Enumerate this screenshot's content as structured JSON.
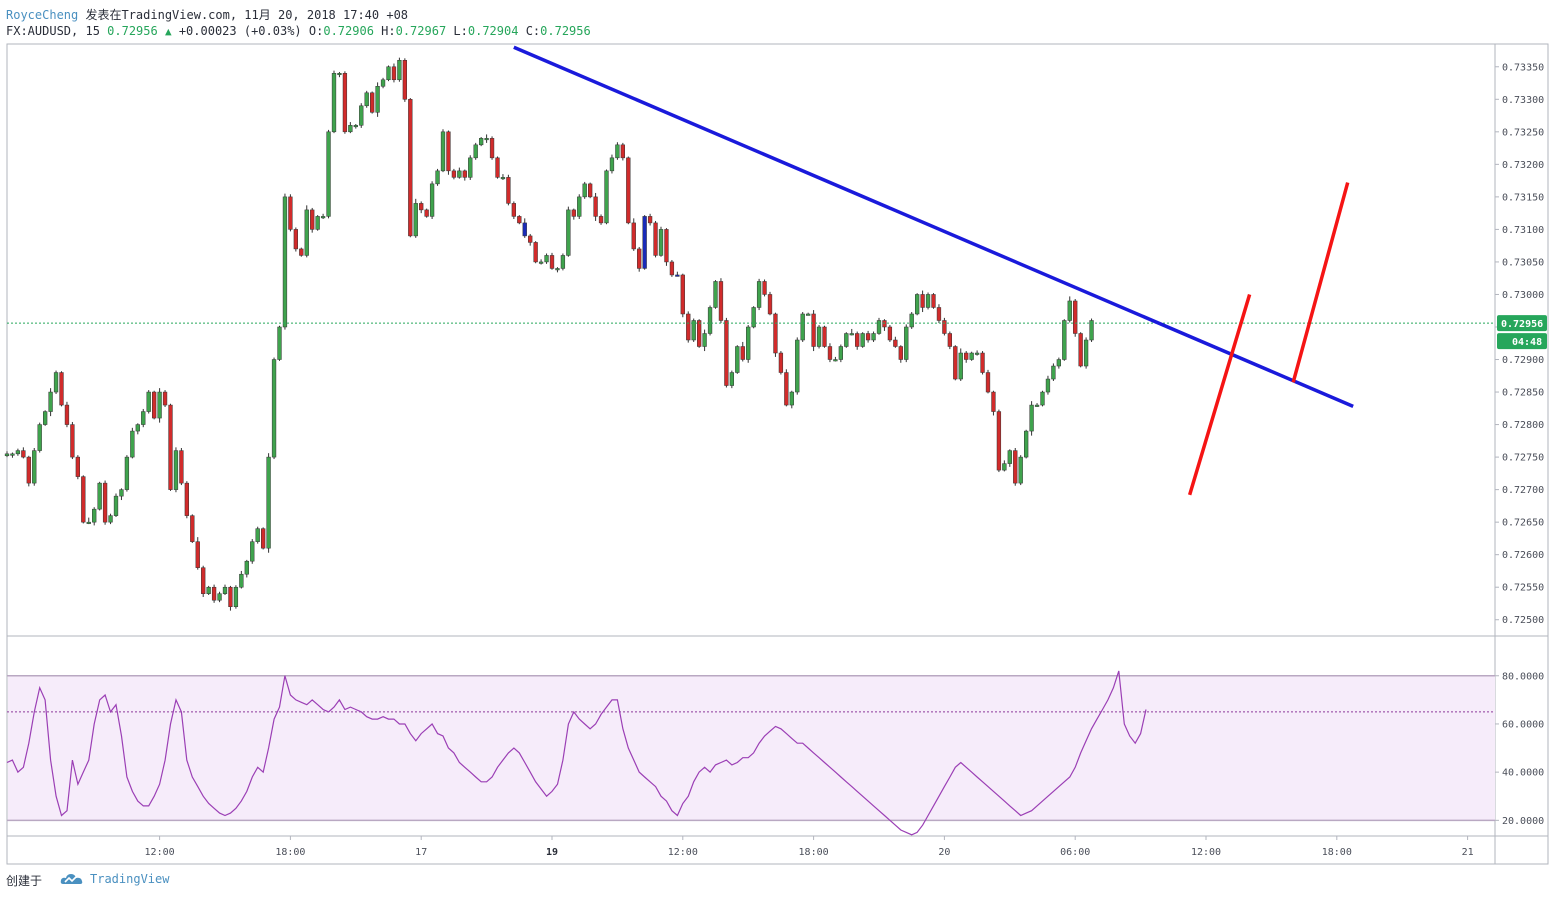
{
  "header": {
    "user": "RoyceCheng",
    "published": "发表在TradingView.com, 11月 20, 2018 17:40 +08",
    "symbol": "FX:AUDUSD, 15",
    "last": "0.72956",
    "change": "+0.00023 (+0.03%)",
    "o_label": "O:",
    "o": "0.72906",
    "h_label": "H:",
    "h": "0.72967",
    "l_label": "L:",
    "l": "0.72904",
    "c_label": "C:",
    "c": "0.72956"
  },
  "footer": {
    "created": "创建于",
    "brand": "TradingView"
  },
  "colors": {
    "up": "#3fa34d",
    "down": "#d12b2b",
    "highlight": "#1a2bb8",
    "trendline": "#1a1adb",
    "channel": "#f51414",
    "rsi": "#9b3fb5",
    "rsi_band": "#f6ecfa",
    "price_line": "#26a65b"
  },
  "chart_data": [
    {
      "type": "candlestick",
      "title": "FX:AUDUSD, 15",
      "ylim": [
        0.72475,
        0.73385
      ],
      "y_ticks": [
        "0.73350",
        "0.73300",
        "0.73250",
        "0.73200",
        "0.73150",
        "0.73100",
        "0.73050",
        "0.73000",
        "0.72950",
        "0.72900",
        "0.72850",
        "0.72800",
        "0.72750",
        "0.72700",
        "0.72650",
        "0.72600",
        "0.72550",
        "0.72500"
      ],
      "x_ticks": [
        {
          "label": "12:00",
          "bar": 28,
          "bold": false
        },
        {
          "label": "18:00",
          "bar": 52,
          "bold": false
        },
        {
          "label": "17",
          "bar": 76,
          "bold": false
        },
        {
          "label": "19",
          "bar": 100,
          "bold": true
        },
        {
          "label": "12:00",
          "bar": 124,
          "bold": false
        },
        {
          "label": "18:00",
          "bar": 148,
          "bold": false
        },
        {
          "label": "20",
          "bar": 172,
          "bold": false
        },
        {
          "label": "06:00",
          "bar": 196,
          "bold": false
        },
        {
          "label": "12:00",
          "bar": 220,
          "bold": false
        },
        {
          "label": "18:00",
          "bar": 244,
          "bold": false
        },
        {
          "label": "21",
          "bar": 268,
          "bold": false
        }
      ],
      "closes": [
        0.72755,
        0.72755,
        0.7276,
        0.7275,
        0.7271,
        0.7276,
        0.728,
        0.7282,
        0.7285,
        0.7288,
        0.7283,
        0.728,
        0.7275,
        0.7272,
        0.7265,
        0.7265,
        0.7267,
        0.7271,
        0.7265,
        0.7266,
        0.7269,
        0.727,
        0.7275,
        0.7279,
        0.728,
        0.7282,
        0.7285,
        0.7281,
        0.7285,
        0.7283,
        0.727,
        0.7276,
        0.7271,
        0.7266,
        0.7262,
        0.7258,
        0.7254,
        0.7255,
        0.7253,
        0.7254,
        0.7255,
        0.7252,
        0.7255,
        0.7257,
        0.7259,
        0.7262,
        0.7264,
        0.7261,
        0.7275,
        0.729,
        0.7295,
        0.7315,
        0.731,
        0.7307,
        0.7306,
        0.7313,
        0.731,
        0.7312,
        0.7312,
        0.7325,
        0.7334,
        0.7334,
        0.7325,
        0.7326,
        0.7326,
        0.7329,
        0.7331,
        0.7328,
        0.7332,
        0.7333,
        0.7335,
        0.7333,
        0.7336,
        0.733,
        0.7309,
        0.7314,
        0.7313,
        0.7312,
        0.7317,
        0.7319,
        0.7325,
        0.7319,
        0.7318,
        0.7319,
        0.7318,
        0.7321,
        0.7323,
        0.7324,
        0.7324,
        0.7321,
        0.7318,
        0.7318,
        0.7314,
        0.7312,
        0.7311,
        0.7309,
        0.7308,
        0.7305,
        0.7305,
        0.7306,
        0.7304,
        0.7304,
        0.7306,
        0.7313,
        0.7312,
        0.7315,
        0.7317,
        0.7315,
        0.7312,
        0.7311,
        0.7319,
        0.7321,
        0.7323,
        0.7321,
        0.7311,
        0.7307,
        0.7304,
        0.7312,
        0.7311,
        0.7306,
        0.731,
        0.7305,
        0.7303,
        0.7303,
        0.7297,
        0.7293,
        0.7296,
        0.7292,
        0.7294,
        0.7298,
        0.7302,
        0.7296,
        0.7286,
        0.7288,
        0.7292,
        0.729,
        0.7295,
        0.7298,
        0.7302,
        0.73,
        0.7297,
        0.7291,
        0.7288,
        0.7283,
        0.7285,
        0.7293,
        0.7297,
        0.7297,
        0.7292,
        0.7295,
        0.7292,
        0.729,
        0.729,
        0.7292,
        0.7294,
        0.7294,
        0.7292,
        0.7294,
        0.7293,
        0.7294,
        0.7296,
        0.7295,
        0.7293,
        0.7292,
        0.729,
        0.7295,
        0.7297,
        0.73,
        0.7298,
        0.73,
        0.7298,
        0.7296,
        0.7294,
        0.7292,
        0.7287,
        0.7291,
        0.729,
        0.7291,
        0.7291,
        0.7288,
        0.7285,
        0.7282,
        0.7273,
        0.7274,
        0.7276,
        0.7271,
        0.7275,
        0.7279,
        0.7283,
        0.7283,
        0.7285,
        0.7287,
        0.7289,
        0.729,
        0.7296,
        0.7299,
        0.7294,
        0.7289,
        0.7293,
        0.7296
      ]
    },
    {
      "type": "line",
      "title": "RSI",
      "ylim": [
        13.5,
        96.5
      ],
      "y_ticks": [
        "80.0000",
        "60.0000",
        "40.0000",
        "20.0000"
      ],
      "bands": [
        20,
        80
      ],
      "midline": 65,
      "values": [
        44,
        45,
        40,
        42,
        52,
        65,
        75,
        70,
        45,
        30,
        22,
        24,
        45,
        35,
        40,
        45,
        60,
        70,
        72,
        65,
        68,
        55,
        38,
        32,
        28,
        26,
        26,
        30,
        35,
        45,
        60,
        70,
        65,
        45,
        38,
        34,
        30,
        27,
        25,
        23,
        22,
        23,
        25,
        28,
        32,
        38,
        42,
        40,
        50,
        62,
        67,
        80,
        72,
        70,
        69,
        68,
        70,
        68,
        66,
        65,
        67,
        70,
        66,
        67,
        66,
        65,
        63,
        62,
        62,
        63,
        62,
        62,
        60,
        60,
        56,
        53,
        56,
        58,
        60,
        56,
        55,
        50,
        48,
        44,
        42,
        40,
        38,
        36,
        36,
        38,
        42,
        45,
        48,
        50,
        48,
        44,
        40,
        36,
        33,
        30,
        32,
        35,
        45,
        60,
        65,
        62,
        60,
        58,
        60,
        64,
        67,
        70,
        70,
        58,
        50,
        45,
        40,
        38,
        36,
        34,
        30,
        28,
        24,
        22,
        27,
        30,
        36,
        40,
        42,
        40,
        43,
        44,
        45,
        43,
        44,
        46,
        46,
        48,
        52,
        55,
        57,
        59,
        58,
        56,
        54,
        52,
        52,
        50,
        48,
        46,
        44,
        42,
        40,
        38,
        36,
        34,
        32,
        30,
        28,
        26,
        24,
        22,
        20,
        18,
        16,
        15,
        14,
        15,
        18,
        22,
        26,
        30,
        34,
        38,
        42,
        44,
        42,
        40,
        38,
        36,
        34,
        32,
        30,
        28,
        26,
        24,
        22,
        23,
        24,
        26,
        28,
        30,
        32,
        34,
        36,
        38,
        42,
        48,
        53,
        58,
        62,
        66,
        70,
        75,
        82,
        60,
        55,
        52,
        56,
        66
      ]
    }
  ],
  "price_badges": {
    "last_price": "0.72956",
    "countdown": "04:48"
  }
}
